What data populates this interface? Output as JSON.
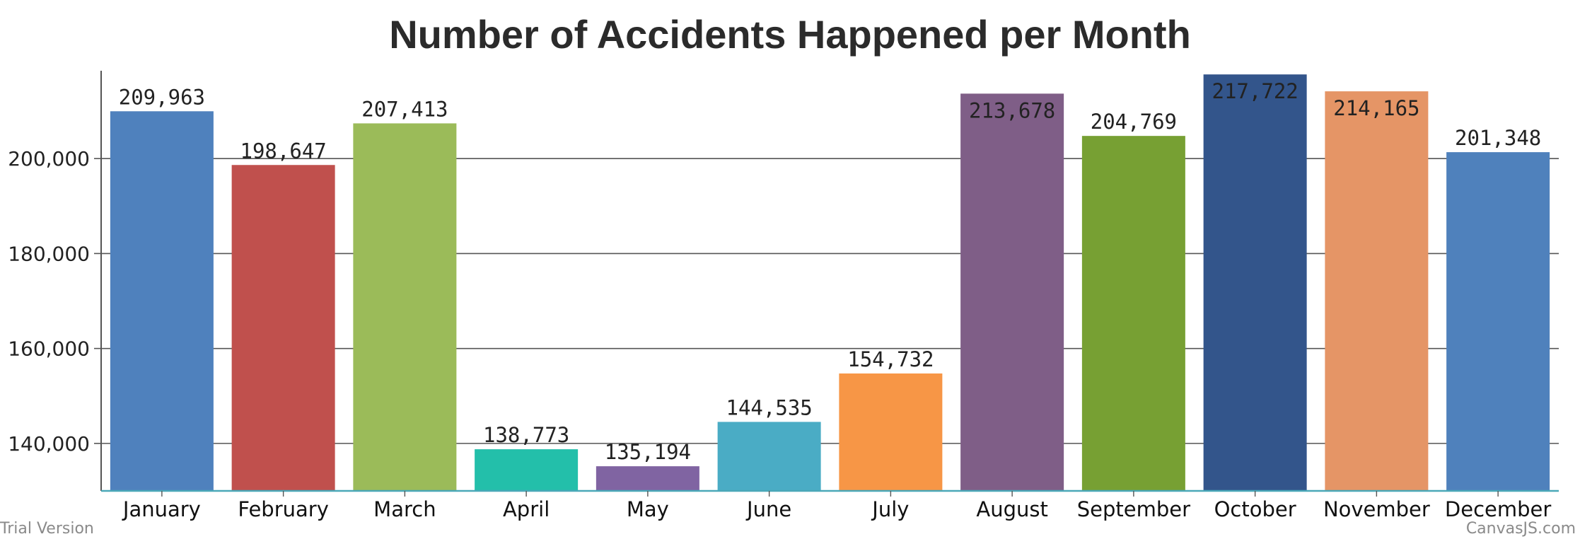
{
  "chart_data": {
    "type": "bar",
    "title": "Number of Accidents Happened per Month",
    "xlabel": "",
    "ylabel": "",
    "ylim": [
      130000,
      218500
    ],
    "yticks": [
      140000,
      160000,
      180000,
      200000
    ],
    "ytick_labels": [
      "140,000",
      "160,000",
      "180,000",
      "200,000"
    ],
    "grid": true,
    "categories": [
      "January",
      "February",
      "March",
      "April",
      "May",
      "June",
      "July",
      "August",
      "September",
      "October",
      "November",
      "December"
    ],
    "values": [
      209963,
      198647,
      207413,
      138773,
      135194,
      144535,
      154732,
      213678,
      204769,
      217722,
      214165,
      201348
    ],
    "value_labels": [
      "209,963",
      "198,647",
      "207,413",
      "138,773",
      "135,194",
      "144,535",
      "154,732",
      "213,678",
      "204,769",
      "217,722",
      "214,165",
      "201,348"
    ],
    "colors": [
      "#4f81bd",
      "#c0504d",
      "#9bbb59",
      "#23bfaa",
      "#8064a2",
      "#4aacc5",
      "#f79646",
      "#7f5e87",
      "#77a033",
      "#33558b",
      "#e59566",
      "#4f81bc"
    ]
  },
  "footer": {
    "left_text": "Trial Version",
    "right_text": "CanvasJS.com"
  }
}
